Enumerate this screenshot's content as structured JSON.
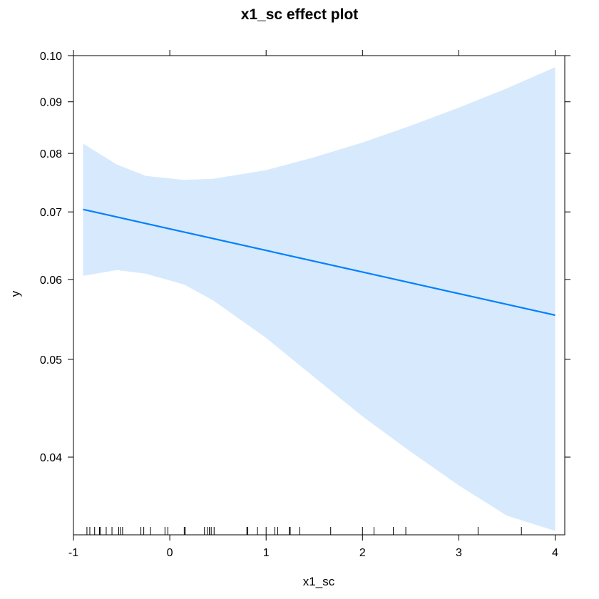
{
  "chart_data": {
    "type": "line",
    "title": "x1_sc effect plot",
    "xlabel": "x1_sc",
    "ylabel": "y",
    "xlim": [
      -1,
      4.1
    ],
    "ylim": [
      0.0335,
      0.1
    ],
    "y_scale": "log",
    "x_ticks": [
      "-1",
      "0",
      "1",
      "2",
      "3",
      "4"
    ],
    "x_tick_values": [
      -1,
      0,
      1,
      2,
      3,
      4
    ],
    "y_ticks": [
      "0.04",
      "0.05",
      "0.06",
      "0.07",
      "0.08",
      "0.09",
      "0.10"
    ],
    "y_tick_values": [
      0.04,
      0.05,
      0.06,
      0.07,
      0.08,
      0.09,
      0.1
    ],
    "line_color": "#0080ff",
    "band_color": "#d7e9fc",
    "series": [
      {
        "x": [
          -0.9,
          4.0
        ],
        "y": [
          0.0704,
          0.0553
        ]
      }
    ],
    "confidence_band": {
      "x": [
        -0.9,
        -0.55,
        -0.25,
        0.15,
        0.45,
        1.0,
        1.5,
        2.0,
        2.5,
        3.0,
        3.5,
        4.0
      ],
      "upper": [
        0.0818,
        0.078,
        0.076,
        0.0753,
        0.0755,
        0.077,
        0.0793,
        0.082,
        0.0852,
        0.0888,
        0.0928,
        0.0974
      ],
      "lower": [
        0.0605,
        0.0613,
        0.0608,
        0.0593,
        0.0572,
        0.0525,
        0.048,
        0.0439,
        0.0405,
        0.0375,
        0.035,
        0.0338
      ]
    },
    "rug": [
      -0.86,
      -0.83,
      -0.78,
      -0.73,
      -0.72,
      -0.66,
      -0.6,
      -0.53,
      -0.51,
      -0.49,
      -0.3,
      -0.27,
      -0.2,
      -0.05,
      -0.02,
      0.15,
      0.16,
      0.36,
      0.39,
      0.41,
      0.43,
      0.46,
      0.8,
      0.81,
      0.91,
      1.0,
      1.09,
      1.12,
      1.24,
      1.25,
      1.35,
      1.67,
      2.0,
      2.12,
      2.32,
      2.45,
      3.2,
      3.65
    ]
  }
}
